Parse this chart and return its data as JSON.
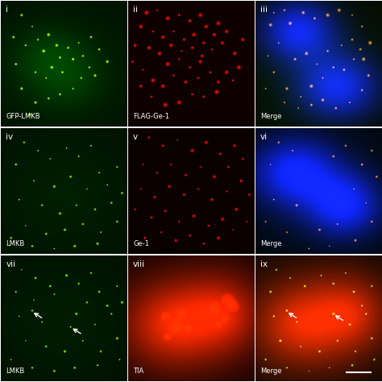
{
  "grid": [
    3,
    3
  ],
  "panel_labels": [
    "i",
    "ii",
    "iii",
    "iv",
    "v",
    "vi",
    "vii",
    "viii",
    "ix"
  ],
  "panel_sublabels": [
    "GFP-LMKB",
    "FLAG-Ge-1",
    "Merge",
    "LMKB",
    "Ge-1",
    "Merge",
    "LMKB",
    "TIA",
    "Merge"
  ],
  "figsize": [
    4.74,
    4.74
  ],
  "dpi": 100,
  "panel_size": 155,
  "dot_size_small": 1.5,
  "dot_size_large": 3.0
}
